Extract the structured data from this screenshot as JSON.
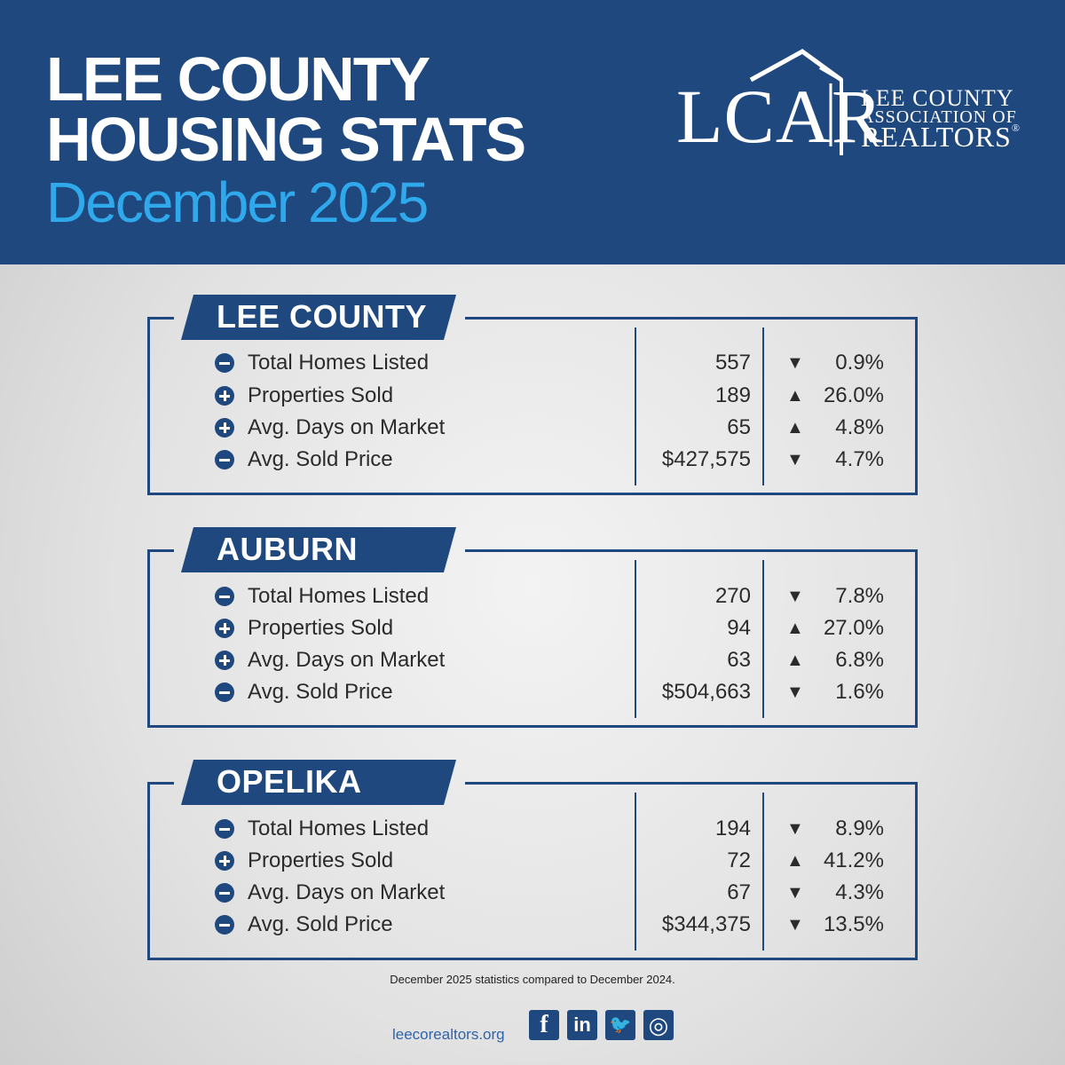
{
  "header": {
    "title_line1": "LEE COUNTY",
    "title_line2": "HOUSING STATS",
    "subtitle": "December 2025",
    "colors": {
      "background": "#1f487e",
      "subtitle": "#2fa9eb",
      "text": "#ffffff"
    }
  },
  "logo": {
    "letters": "LCAR",
    "line1": "LEE COUNTY",
    "line2": "ASSOCIATION OF",
    "line3": "REALTORS",
    "reg": "®"
  },
  "sections": [
    {
      "title": "LEE COUNTY",
      "rows": [
        {
          "icon": "minus-circle-icon",
          "label": "Total Homes Listed",
          "value": "557",
          "trend": "down",
          "arrow": "▼",
          "change": "0.9%"
        },
        {
          "icon": "plus-circle-icon",
          "label": "Properties Sold",
          "value": "189",
          "trend": "up",
          "arrow": "▲",
          "change": "26.0%"
        },
        {
          "icon": "plus-circle-icon",
          "label": "Avg. Days on Market",
          "value": "65",
          "trend": "up",
          "arrow": "▲",
          "change": "4.8%"
        },
        {
          "icon": "minus-circle-icon",
          "label": "Avg. Sold Price",
          "value": "$427,575",
          "trend": "down",
          "arrow": "▼",
          "change": "4.7%"
        }
      ]
    },
    {
      "title": "AUBURN",
      "rows": [
        {
          "icon": "minus-circle-icon",
          "label": "Total Homes Listed",
          "value": "270",
          "trend": "down",
          "arrow": "▼",
          "change": "7.8%"
        },
        {
          "icon": "plus-circle-icon",
          "label": "Properties Sold",
          "value": "94",
          "trend": "up",
          "arrow": "▲",
          "change": "27.0%"
        },
        {
          "icon": "plus-circle-icon",
          "label": "Avg. Days on Market",
          "value": "63",
          "trend": "up",
          "arrow": "▲",
          "change": "6.8%"
        },
        {
          "icon": "minus-circle-icon",
          "label": "Avg. Sold Price",
          "value": "$504,663",
          "trend": "down",
          "arrow": "▼",
          "change": "1.6%"
        }
      ]
    },
    {
      "title": "OPELIKA",
      "rows": [
        {
          "icon": "minus-circle-icon",
          "label": "Total Homes Listed",
          "value": "194",
          "trend": "down",
          "arrow": "▼",
          "change": "8.9%"
        },
        {
          "icon": "plus-circle-icon",
          "label": "Properties Sold",
          "value": "72",
          "trend": "up",
          "arrow": "▲",
          "change": "41.2%"
        },
        {
          "icon": "minus-circle-icon",
          "label": "Avg. Days on Market",
          "value": "67",
          "trend": "down",
          "arrow": "▼",
          "change": "4.3%"
        },
        {
          "icon": "minus-circle-icon",
          "label": "Avg. Sold Price",
          "value": "$344,375",
          "trend": "down",
          "arrow": "▼",
          "change": "13.5%"
        }
      ]
    }
  ],
  "footer": {
    "note": "December 2025 statistics compared to December 2024.",
    "website": "leecorealtors.org",
    "social": [
      {
        "icon": "facebook-icon",
        "glyph": "f"
      },
      {
        "icon": "linkedin-icon",
        "glyph": "in"
      },
      {
        "icon": "twitter-icon",
        "glyph": "🐦"
      },
      {
        "icon": "instagram-icon",
        "glyph": "◎"
      }
    ]
  }
}
